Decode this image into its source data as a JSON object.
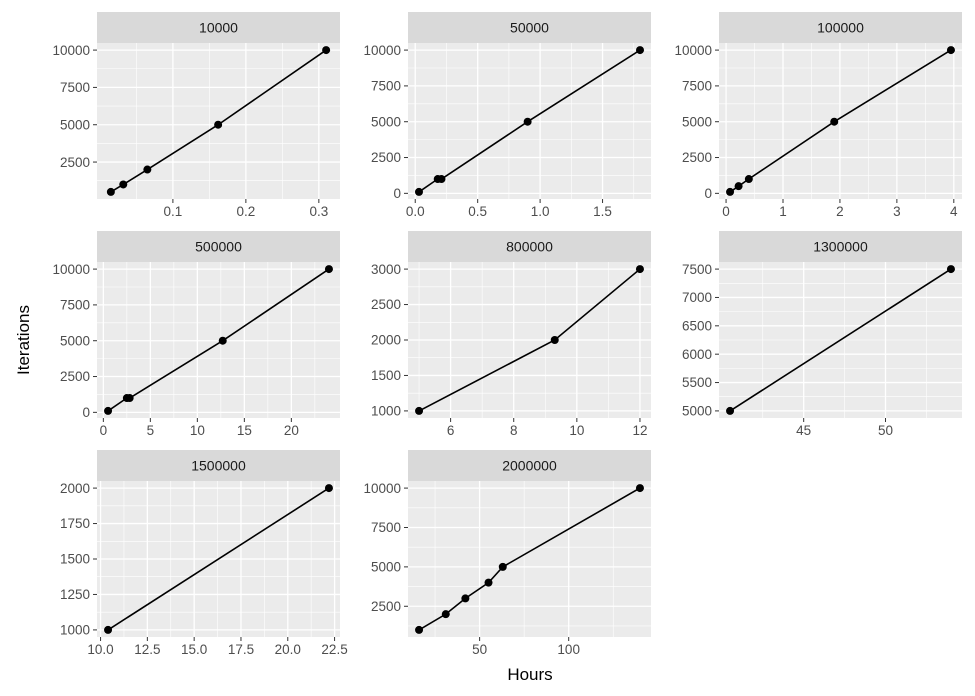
{
  "chart_data": {
    "type": "line",
    "xlabel": "Hours",
    "ylabel": "Iterations",
    "colors": {
      "panel_bg": "#ebebeb",
      "strip_bg": "#d9d9d9",
      "grid": "#ffffff",
      "line": "#000000",
      "point": "#000000",
      "tick_label": "#4d4d4d"
    },
    "panels": [
      {
        "strip": "10000",
        "x": [
          0.015,
          0.032,
          0.065,
          0.162,
          0.31
        ],
        "y": [
          500,
          1000,
          2000,
          5000,
          10000
        ],
        "xlim": [
          -0.004,
          0.329
        ],
        "ylim": [
          25,
          10475
        ],
        "xticks": [
          0.1,
          0.2,
          0.3
        ],
        "xtick_labels": [
          "0.1",
          "0.2",
          "0.3"
        ],
        "xminor": [
          0.05,
          0.15,
          0.25
        ],
        "yticks": [
          2500,
          5000,
          7500,
          10000
        ],
        "ytick_labels": [
          "2500",
          "5000",
          "7500",
          "10000"
        ],
        "yminor": [
          1250,
          3750,
          6250,
          8750
        ]
      },
      {
        "strip": "50000",
        "x": [
          0.03,
          0.18,
          0.21,
          0.9,
          1.8
        ],
        "y": [
          100,
          1000,
          1000,
          5000,
          10000
        ],
        "xlim": [
          -0.058,
          1.888
        ],
        "ylim": [
          -395,
          10495
        ],
        "xticks": [
          0,
          0.5,
          1,
          1.5
        ],
        "xtick_labels": [
          "0.0",
          "0.5",
          "1.0",
          "1.5"
        ],
        "xminor": [
          0.25,
          0.75,
          1.25,
          1.75
        ],
        "yticks": [
          0,
          2500,
          5000,
          7500,
          10000
        ],
        "ytick_labels": [
          "0",
          "2500",
          "5000",
          "7500",
          "10000"
        ],
        "yminor": [
          1250,
          3750,
          6250,
          8750
        ]
      },
      {
        "strip": "100000",
        "x": [
          0.07,
          0.22,
          0.4,
          1.9,
          3.95
        ],
        "y": [
          100,
          500,
          1000,
          5000,
          10000
        ],
        "xlim": [
          -0.124,
          4.144
        ],
        "ylim": [
          -395,
          10495
        ],
        "xticks": [
          0,
          1,
          2,
          3,
          4
        ],
        "xtick_labels": [
          "0",
          "1",
          "2",
          "3",
          "4"
        ],
        "xminor": [
          0.5,
          1.5,
          2.5,
          3.5
        ],
        "yticks": [
          0,
          2500,
          5000,
          7500,
          10000
        ],
        "ytick_labels": [
          "0",
          "2500",
          "5000",
          "7500",
          "10000"
        ],
        "yminor": [
          1250,
          3750,
          6250,
          8750
        ]
      },
      {
        "strip": "500000",
        "x": [
          0.5,
          2.5,
          2.8,
          12.7,
          24
        ],
        "y": [
          100,
          1000,
          1000,
          5000,
          10000
        ],
        "xlim": [
          -0.675,
          25.175
        ],
        "ylim": [
          -395,
          10495
        ],
        "xticks": [
          0,
          5,
          10,
          15,
          20
        ],
        "xtick_labels": [
          "0",
          "5",
          "10",
          "15",
          "20"
        ],
        "xminor": [
          2.5,
          7.5,
          12.5,
          17.5,
          22.5
        ],
        "yticks": [
          0,
          2500,
          5000,
          7500,
          10000
        ],
        "ytick_labels": [
          "0",
          "2500",
          "5000",
          "7500",
          "10000"
        ],
        "yminor": [
          1250,
          3750,
          6250,
          8750
        ]
      },
      {
        "strip": "800000",
        "x": [
          5,
          9.3,
          12
        ],
        "y": [
          1000,
          2000,
          3000
        ],
        "xlim": [
          4.65,
          12.35
        ],
        "ylim": [
          900,
          3100
        ],
        "xticks": [
          6,
          8,
          10,
          12
        ],
        "xtick_labels": [
          "6",
          "8",
          "10",
          "12"
        ],
        "xminor": [
          5,
          7,
          9,
          11
        ],
        "yticks": [
          1000,
          1500,
          2000,
          2500,
          3000
        ],
        "ytick_labels": [
          "1000",
          "1500",
          "2000",
          "2500",
          "3000"
        ],
        "yminor": [
          1250,
          1750,
          2250,
          2750
        ]
      },
      {
        "strip": "1300000",
        "x": [
          40.5,
          54
        ],
        "y": [
          5000,
          7500
        ],
        "xlim": [
          39.825,
          54.675
        ],
        "ylim": [
          4875,
          7625
        ],
        "xticks": [
          45,
          50
        ],
        "xtick_labels": [
          "45",
          "50"
        ],
        "xminor": [
          42.5,
          47.5,
          52.5
        ],
        "yticks": [
          5000,
          5500,
          6000,
          6500,
          7000,
          7500
        ],
        "ytick_labels": [
          "5000",
          "5500",
          "6000",
          "6500",
          "7000",
          "7500"
        ],
        "yminor": [
          5250,
          5750,
          6250,
          6750,
          7250
        ]
      },
      {
        "strip": "1500000",
        "x": [
          10.4,
          22.2
        ],
        "y": [
          1000,
          2000
        ],
        "xlim": [
          9.81,
          22.79
        ],
        "ylim": [
          950,
          2050
        ],
        "xticks": [
          10,
          12.5,
          15,
          17.5,
          20,
          22.5
        ],
        "xtick_labels": [
          "10.0",
          "12.5",
          "15.0",
          "17.5",
          "20.0",
          "22.5"
        ],
        "xminor": [
          11.25,
          13.75,
          16.25,
          18.75,
          21.25
        ],
        "yticks": [
          1000,
          1250,
          1500,
          1750,
          2000
        ],
        "ytick_labels": [
          "1000",
          "1250",
          "1500",
          "1750",
          "2000"
        ],
        "yminor": [
          1125,
          1375,
          1625,
          1875
        ]
      },
      {
        "strip": "2000000",
        "x": [
          16,
          31,
          42,
          55,
          63,
          140
        ],
        "y": [
          1000,
          2000,
          3000,
          4000,
          5000,
          10000
        ],
        "xlim": [
          9.8,
          146.2
        ],
        "ylim": [
          550,
          10450
        ],
        "xticks": [
          50,
          100
        ],
        "xtick_labels": [
          "50",
          "100"
        ],
        "xminor": [
          25,
          75,
          125
        ],
        "yticks": [
          2500,
          5000,
          7500,
          10000
        ],
        "ytick_labels": [
          "2500",
          "5000",
          "7500",
          "10000"
        ],
        "yminor": [
          1250,
          3750,
          6250,
          8750
        ]
      }
    ]
  }
}
